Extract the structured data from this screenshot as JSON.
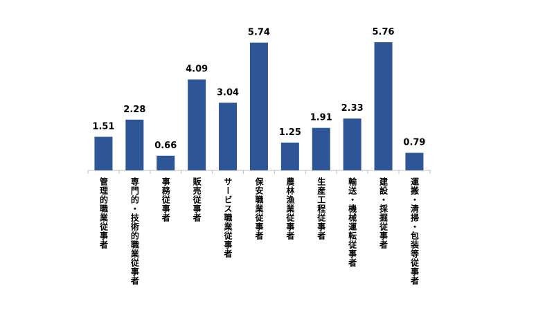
{
  "chart_data": {
    "type": "bar",
    "categories": [
      "管理的職業従事者",
      "専門的・技術的職業従事者",
      "事務従事者",
      "販売従事者",
      "サービス職業従事者",
      "保安職業従事者",
      "農林漁業従事者",
      "生産工程従事者",
      "輸送・機械運転従事者",
      "建設・採掘従事者",
      "運搬・清掃・包装等従事者"
    ],
    "values": [
      1.51,
      2.28,
      0.66,
      4.09,
      3.04,
      5.74,
      1.25,
      1.91,
      2.33,
      5.76,
      0.79
    ],
    "color": "#2e5596"
  }
}
